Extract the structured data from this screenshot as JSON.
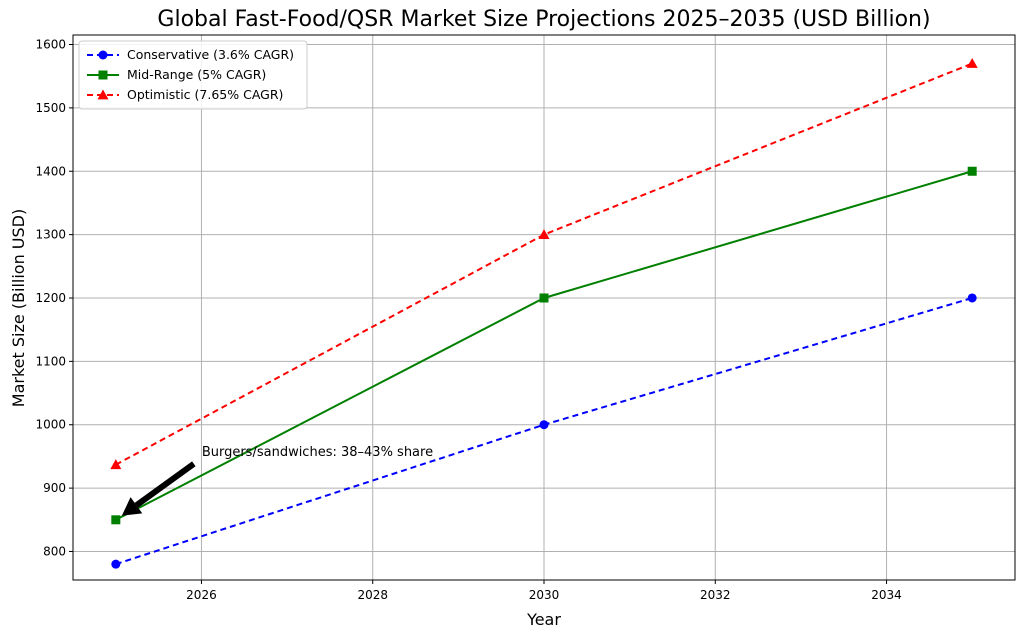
{
  "chart_data": {
    "type": "line",
    "title": "Global Fast-Food/QSR Market Size Projections 2025–2035 (USD Billion)",
    "xlabel": "Year",
    "ylabel": "Market Size (Billion USD)",
    "x": [
      2025,
      2030,
      2035
    ],
    "xlim": [
      2024.5,
      2035.5
    ],
    "ylim": [
      755,
      1615
    ],
    "xticks": [
      2026,
      2028,
      2030,
      2032,
      2034
    ],
    "yticks": [
      800,
      900,
      1000,
      1100,
      1200,
      1300,
      1400,
      1500,
      1600
    ],
    "grid": true,
    "legend_position": "top-left",
    "series": [
      {
        "name": "Conservative (3.6% CAGR)",
        "values": [
          780,
          1000,
          1200
        ],
        "color": "#0000ff",
        "dash": "dashed",
        "marker": "circle"
      },
      {
        "name": "Mid-Range (5% CAGR)",
        "values": [
          850,
          1200,
          1400
        ],
        "color": "#008000",
        "dash": "solid",
        "marker": "square"
      },
      {
        "name": "Optimistic (7.65% CAGR)",
        "values": [
          937,
          1300,
          1570
        ],
        "color": "#ff0000",
        "dash": "dashed",
        "marker": "triangle"
      }
    ],
    "annotations": [
      {
        "text": "Burgers/sandwiches: 38–43% share",
        "target": {
          "x": 2025,
          "y": 850
        }
      }
    ]
  }
}
